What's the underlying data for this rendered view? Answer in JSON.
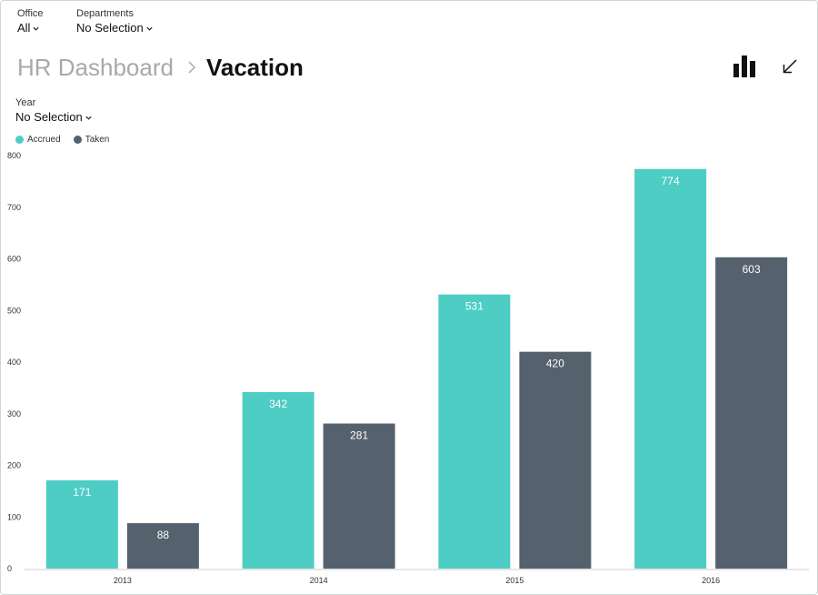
{
  "filters": {
    "office": {
      "label": "Office",
      "value": "All"
    },
    "departments": {
      "label": "Departments",
      "value": "No Selection"
    },
    "year": {
      "label": "Year",
      "value": "No Selection"
    }
  },
  "breadcrumb": {
    "parent": "HR Dashboard",
    "current": "Vacation"
  },
  "toolbar": {
    "chart_type_icon": "bar-chart-icon",
    "collapse_icon": "arrow-down-left-icon"
  },
  "colors": {
    "accrued": "#4ecdc4",
    "taken": "#55616d",
    "axis": "#cccccc",
    "value_label": "#ffffff"
  },
  "chart_data": {
    "type": "bar",
    "categories": [
      "2013",
      "2014",
      "2015",
      "2016"
    ],
    "series": [
      {
        "name": "Accrued",
        "values": [
          171,
          342,
          531,
          774
        ]
      },
      {
        "name": "Taken",
        "values": [
          88,
          281,
          420,
          603
        ]
      }
    ],
    "yticks": [
      "0",
      "100",
      "200",
      "300",
      "400",
      "500",
      "600",
      "700",
      "800"
    ],
    "ylim": [
      0,
      800
    ],
    "legend": "top-left",
    "grid": false
  }
}
